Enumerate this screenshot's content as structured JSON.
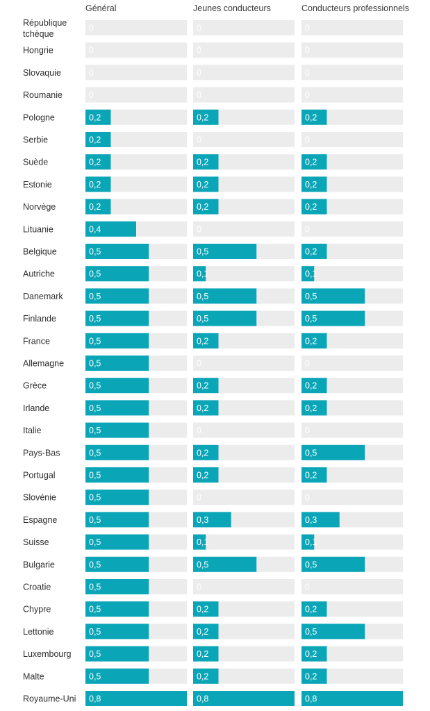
{
  "chart_data": {
    "type": "bar",
    "xlim": [
      0,
      0.8
    ],
    "colors": {
      "bar": "#0aa6b8",
      "track": "#ececec",
      "zero_text": "#ffffff",
      "value_text": "#ffffff"
    },
    "columns": [
      "Général",
      "Jeunes conducteurs",
      "Conducteurs professionnels"
    ],
    "categories": [
      "République tchèque",
      "Hongrie",
      "Slovaquie",
      "Roumanie",
      "Pologne",
      "Serbie",
      "Suède",
      "Estonie",
      "Norvège",
      "Lituanie",
      "Belgique",
      "Autriche",
      "Danemark",
      "Finlande",
      "France",
      "Allemagne",
      "Grèce",
      "Irlande",
      "Italie",
      "Pays-Bas",
      "Portugal",
      "Slovénie",
      "Espagne",
      "Suisse",
      "Bulgarie",
      "Croatie",
      "Chypre",
      "Lettonie",
      "Luxembourg",
      "Malte",
      "Royaume-Uni"
    ],
    "series": [
      {
        "values": [
          0,
          0,
          0,
          0,
          0.2,
          0.2,
          0.2,
          0.2,
          0.2,
          0.4,
          0.5,
          0.5,
          0.5,
          0.5,
          0.5,
          0.5,
          0.5,
          0.5,
          0.5,
          0.5,
          0.5,
          0.5,
          0.5,
          0.5,
          0.5,
          0.5,
          0.5,
          0.5,
          0.5,
          0.5,
          0.8
        ]
      },
      {
        "values": [
          0,
          0,
          0,
          0,
          0.2,
          0,
          0.2,
          0.2,
          0.2,
          0,
          0.5,
          0.1,
          0.5,
          0.5,
          0.2,
          0,
          0.2,
          0.2,
          0,
          0.2,
          0.2,
          0,
          0.3,
          0.1,
          0.5,
          0,
          0.2,
          0.2,
          0.2,
          0.2,
          0.8
        ]
      },
      {
        "values": [
          0,
          0,
          0,
          0,
          0.2,
          0,
          0.2,
          0.2,
          0.2,
          0,
          0.2,
          0.1,
          0.5,
          0.5,
          0.2,
          0,
          0.2,
          0.2,
          0,
          0.5,
          0.2,
          0,
          0.3,
          0.1,
          0.5,
          0,
          0.2,
          0.5,
          0.2,
          0.2,
          0.8
        ]
      }
    ],
    "value_labels": [
      [
        "0",
        "0",
        "0",
        "0",
        "0,2",
        "0,2",
        "0,2",
        "0,2",
        "0,2",
        "0,4",
        "0,5",
        "0,5",
        "0,5",
        "0,5",
        "0,5",
        "0,5",
        "0,5",
        "0,5",
        "0,5",
        "0,5",
        "0,5",
        "0,5",
        "0,5",
        "0,5",
        "0,5",
        "0,5",
        "0,5",
        "0,5",
        "0,5",
        "0,5",
        "0,8"
      ],
      [
        "0",
        "0",
        "0",
        "0",
        "0,2",
        "0",
        "0,2",
        "0,2",
        "0,2",
        "0",
        "0,5",
        "0,1",
        "0,5",
        "0,5",
        "0,2",
        "0",
        "0,2",
        "0,2",
        "0",
        "0,2",
        "0,2",
        "0",
        "0,3",
        "0,1",
        "0,5",
        "0",
        "0,2",
        "0,2",
        "0,2",
        "0,2",
        "0,8"
      ],
      [
        "0",
        "0",
        "0",
        "0",
        "0,2",
        "0",
        "0,2",
        "0,2",
        "0,2",
        "0",
        "0,2",
        "0,1",
        "0,5",
        "0,5",
        "0,2",
        "0",
        "0,2",
        "0,2",
        "0",
        "0,5",
        "0,2",
        "0",
        "0,3",
        "0,1",
        "0,5",
        "0",
        "0,2",
        "0,5",
        "0,2",
        "0,2",
        "0,8"
      ]
    ]
  }
}
